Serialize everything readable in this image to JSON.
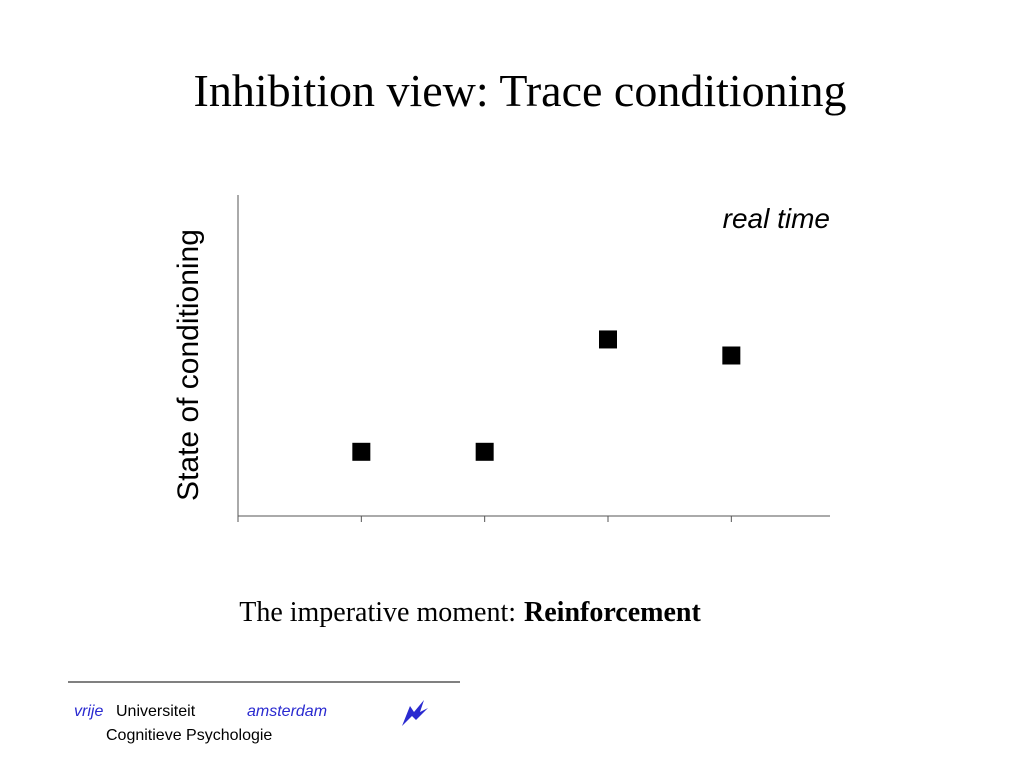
{
  "chart_data": {
    "type": "scatter",
    "title": "Inhibition view: Trace conditioning",
    "y_label": "State of conditioning",
    "annotation": "real time",
    "x": [
      1,
      2,
      3,
      4
    ],
    "values": [
      2,
      2,
      5.5,
      5
    ],
    "color": "#000000",
    "xlim": [
      0,
      4.8
    ],
    "xticks": [
      0,
      1,
      2,
      3,
      4
    ],
    "ylim": [
      0,
      10
    ]
  },
  "caption": {
    "text": "The imperative moment:",
    "emphasis": "Reinforcement"
  },
  "footer": {
    "vrije": "vrije",
    "universiteit": "Universiteit",
    "amsterdam": "amsterdam",
    "department": "Cognitieve Psychologie"
  }
}
